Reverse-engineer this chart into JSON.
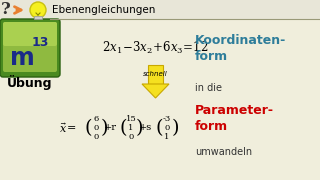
{
  "title": "Ebenengleichungen",
  "bg_color": "#f0eedc",
  "ubung_text": "Übung",
  "koordinaten_text": "Koordinaten-\nform",
  "parameterform_text": "Parameter-\nform",
  "in_die_text": "in die",
  "umwandeln_text": "umwandeln",
  "schnell_text": "schnell",
  "vec1": [
    "6",
    "0",
    "0"
  ],
  "vec2": [
    "15",
    "1",
    "0"
  ],
  "vec3": [
    "-3",
    "0",
    "1"
  ],
  "koordinaten_color": "#2e7d9a",
  "parameterform_color": "#cc0000",
  "arrow_yellow": "#f5e020",
  "arrow_border": "#c8a800",
  "header_line_color": "#999977",
  "m13_green_light": "#8fba40",
  "m13_green_dark": "#4a8a20",
  "m13_text_color": "#1a2a88"
}
